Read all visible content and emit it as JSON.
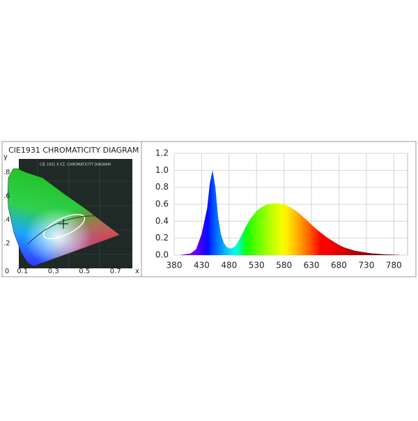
{
  "chart_data": [
    {
      "type": "chromaticity",
      "title": "CIE1931 CHROMATICITY DIAGRAM",
      "inner_title": "CIE 1931 X.Y.Z. CHROMATICITY DIAGRAM",
      "xlabel": "x",
      "ylabel": "y",
      "xlim": [
        0,
        0.8
      ],
      "ylim": [
        0,
        0.9
      ],
      "xticks": [
        0,
        0.1,
        0.3,
        0.5,
        0.7
      ],
      "yticks": [
        {
          "value": 0.2,
          "label": ".2"
        },
        {
          "value": 0.4,
          "label": ".4"
        },
        {
          "value": 0.6,
          "label": ".6"
        },
        {
          "value": 0.8,
          "label": ".8"
        }
      ]
    },
    {
      "type": "area",
      "x": [
        380,
        390,
        400,
        410,
        420,
        430,
        440,
        445,
        450,
        455,
        460,
        465,
        470,
        475,
        480,
        485,
        490,
        495,
        500,
        510,
        520,
        530,
        540,
        550,
        560,
        570,
        580,
        590,
        600,
        610,
        620,
        630,
        640,
        650,
        660,
        670,
        680,
        690,
        700,
        710,
        720,
        730,
        740,
        750,
        760,
        770,
        780,
        790
      ],
      "values": [
        0,
        0,
        0.01,
        0.02,
        0.07,
        0.25,
        0.55,
        0.85,
        1.0,
        0.8,
        0.45,
        0.25,
        0.15,
        0.1,
        0.08,
        0.08,
        0.1,
        0.14,
        0.2,
        0.33,
        0.44,
        0.52,
        0.57,
        0.6,
        0.61,
        0.61,
        0.6,
        0.57,
        0.53,
        0.48,
        0.42,
        0.36,
        0.3,
        0.25,
        0.2,
        0.16,
        0.12,
        0.09,
        0.07,
        0.05,
        0.04,
        0.03,
        0.02,
        0.015,
        0.01,
        0.007,
        0.005,
        0.002
      ],
      "xlim": [
        380,
        805
      ],
      "ylim": [
        0,
        1.2
      ],
      "xticks": [
        380,
        430,
        480,
        530,
        580,
        630,
        680,
        730,
        780
      ],
      "yticks": [
        {
          "value": 0,
          "label": "0.0"
        },
        0.2,
        0.4,
        0.6,
        0.8,
        {
          "value": 1,
          "label": "1.0"
        },
        1.2
      ],
      "grid": true
    }
  ]
}
